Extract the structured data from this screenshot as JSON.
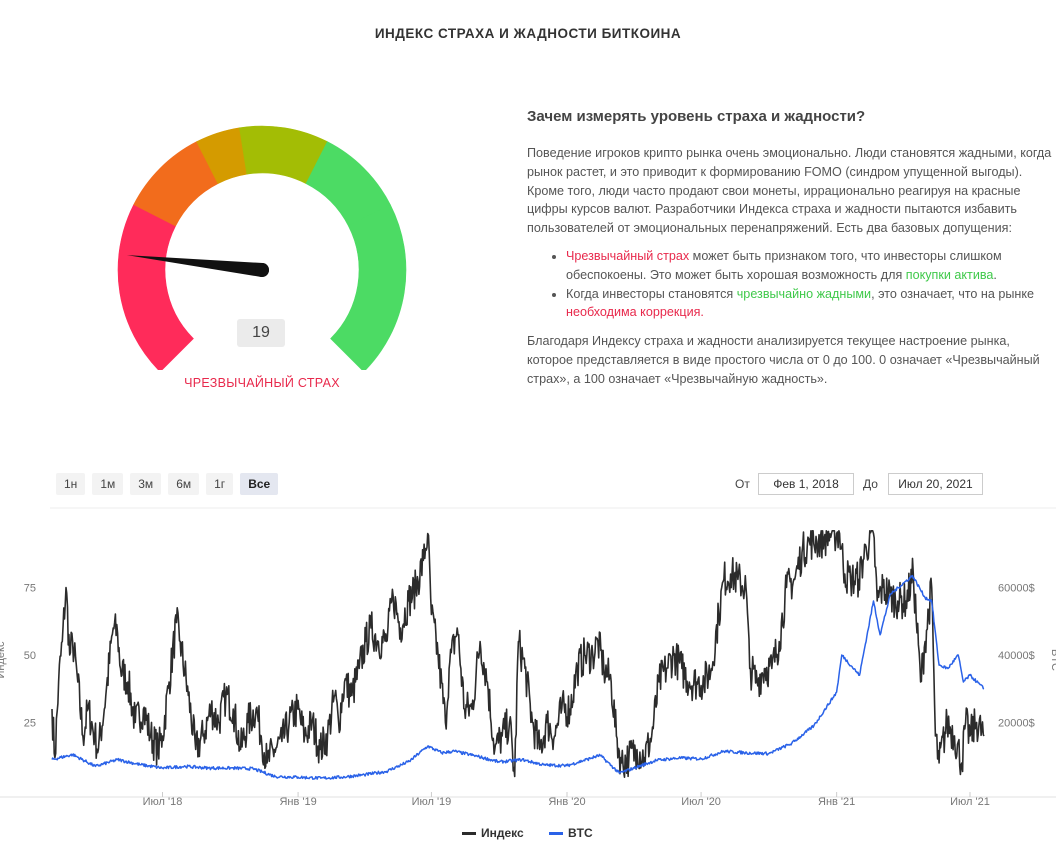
{
  "page_title": "ИНДЕКС СТРАХА И ЖАДНОСТИ БИТКОИНА",
  "gauge": {
    "value": "19",
    "label": "ЧРЕЗВЫЧАЙНЫЙ СТРАХ",
    "segment_colors": [
      "#ff2b5a",
      "#f26c1c",
      "#d49b00",
      "#a3bd05",
      "#4cdb64"
    ]
  },
  "info": {
    "heading": "Зачем измерять уровень страха и жадности?",
    "paragraph1": "Поведение игроков крипто рынка очень эмоционально. Люди становятся жадными, когда рынок растет, и это приводит к формированию FOMO (синдром упущенной выгоды). Кроме того, люди часто продают свои монеты, иррационально реагируя на красные цифры курсов валют. Разработчики Индекса страха и жадности пытаются избавить пользователей от эмоциональных перенапряжений. Есть два базовых допущения:",
    "bullet1": {
      "highlight": "Чрезвычайный страх",
      "text": " может быть признаком того, что инвесторы слишком обеспокоены. Это может быть хорошая возможность для ",
      "highlight2": "покупки актива",
      "end": "."
    },
    "bullet2": {
      "text": "Когда инвесторы становятся ",
      "highlight": "чрезвычайно жадными",
      "text2": ", это означает, что на рынке ",
      "highlight2": "необходима коррекция."
    },
    "paragraph2": "Благодаря Индексу страха и жадности анализируется текущее настроение рынка, которое представляется в виде простого числа от 0 до 100. 0 означает «Чрезвычайный страх», а 100 означает «Чрезвычайную жадность»."
  },
  "controls": {
    "ranges": [
      "1н",
      "1м",
      "3м",
      "6м",
      "1г",
      "Все"
    ],
    "active_range": "Все",
    "from_label": "От",
    "from_value": "Фев 1, 2018",
    "to_label": "До",
    "to_value": "Июл 20, 2021"
  },
  "legend": {
    "index": "Индекс",
    "btc": "BTC"
  },
  "chart_data": {
    "type": "line",
    "x_range": [
      "2018-02-01",
      "2021-07-20"
    ],
    "x_ticks": [
      {
        "date": "2018-07-01",
        "label": "Июл '18"
      },
      {
        "date": "2019-01-01",
        "label": "Янв '19"
      },
      {
        "date": "2019-07-01",
        "label": "Июл '19"
      },
      {
        "date": "2020-01-01",
        "label": "Янв '20"
      },
      {
        "date": "2020-07-01",
        "label": "Июл '20"
      },
      {
        "date": "2021-01-01",
        "label": "Янв '21"
      },
      {
        "date": "2021-07-01",
        "label": "Июл '21"
      }
    ],
    "y_left": {
      "label": "Индекс",
      "range": [
        0,
        100
      ],
      "ticks": [
        {
          "v": 25,
          "label": "25"
        },
        {
          "v": 50,
          "label": "50"
        },
        {
          "v": 75,
          "label": "75"
        }
      ]
    },
    "y_right": {
      "label": "BTC",
      "range": [
        0,
        80000
      ],
      "ticks": [
        {
          "v": 20000,
          "label": "20000$"
        },
        {
          "v": 40000,
          "label": "40000$"
        },
        {
          "v": 60000,
          "label": "60000$"
        }
      ]
    },
    "series": [
      {
        "name": "Индекс",
        "color": "#2b2b2b",
        "axis": "left",
        "points": [
          [
            "2018-02-01",
            30
          ],
          [
            "2018-02-05",
            12
          ],
          [
            "2018-02-10",
            40
          ],
          [
            "2018-02-15",
            55
          ],
          [
            "2018-02-20",
            75
          ],
          [
            "2018-02-25",
            50
          ],
          [
            "2018-03-01",
            55
          ],
          [
            "2018-03-08",
            40
          ],
          [
            "2018-03-15",
            20
          ],
          [
            "2018-03-22",
            30
          ],
          [
            "2018-03-31",
            20
          ],
          [
            "2018-04-05",
            15
          ],
          [
            "2018-04-15",
            35
          ],
          [
            "2018-04-25",
            60
          ],
          [
            "2018-05-01",
            58
          ],
          [
            "2018-05-05",
            45
          ],
          [
            "2018-05-15",
            40
          ],
          [
            "2018-05-25",
            25
          ],
          [
            "2018-06-05",
            30
          ],
          [
            "2018-06-15",
            20
          ],
          [
            "2018-06-25",
            15
          ],
          [
            "2018-07-01",
            20
          ],
          [
            "2018-07-10",
            40
          ],
          [
            "2018-07-20",
            62
          ],
          [
            "2018-07-25",
            55
          ],
          [
            "2018-08-05",
            35
          ],
          [
            "2018-08-15",
            15
          ],
          [
            "2018-08-25",
            20
          ],
          [
            "2018-09-05",
            30
          ],
          [
            "2018-09-15",
            25
          ],
          [
            "2018-09-25",
            35
          ],
          [
            "2018-10-05",
            30
          ],
          [
            "2018-10-15",
            15
          ],
          [
            "2018-10-25",
            25
          ],
          [
            "2018-11-05",
            30
          ],
          [
            "2018-11-12",
            20
          ],
          [
            "2018-11-20",
            10
          ],
          [
            "2018-11-30",
            15
          ],
          [
            "2018-12-10",
            18
          ],
          [
            "2018-12-20",
            25
          ],
          [
            "2018-12-31",
            30
          ],
          [
            "2019-01-10",
            20
          ],
          [
            "2019-01-20",
            25
          ],
          [
            "2019-01-31",
            15
          ],
          [
            "2019-02-10",
            20
          ],
          [
            "2019-02-20",
            35
          ],
          [
            "2019-02-25",
            25
          ],
          [
            "2019-03-05",
            40
          ],
          [
            "2019-03-15",
            35
          ],
          [
            "2019-03-25",
            45
          ],
          [
            "2019-04-03",
            55
          ],
          [
            "2019-04-10",
            60
          ],
          [
            "2019-04-20",
            55
          ],
          [
            "2019-05-01",
            55
          ],
          [
            "2019-05-10",
            72
          ],
          [
            "2019-05-20",
            60
          ],
          [
            "2019-05-31",
            70
          ],
          [
            "2019-06-10",
            75
          ],
          [
            "2019-06-20",
            85
          ],
          [
            "2019-06-26",
            95
          ],
          [
            "2019-07-01",
            65
          ],
          [
            "2019-07-10",
            50
          ],
          [
            "2019-07-20",
            25
          ],
          [
            "2019-07-25",
            45
          ],
          [
            "2019-08-05",
            60
          ],
          [
            "2019-08-15",
            30
          ],
          [
            "2019-08-25",
            30
          ],
          [
            "2019-09-05",
            55
          ],
          [
            "2019-09-15",
            40
          ],
          [
            "2019-09-25",
            15
          ],
          [
            "2019-10-05",
            20
          ],
          [
            "2019-10-15",
            25
          ],
          [
            "2019-10-22",
            5
          ],
          [
            "2019-10-27",
            55
          ],
          [
            "2019-11-05",
            45
          ],
          [
            "2019-11-15",
            25
          ],
          [
            "2019-11-25",
            15
          ],
          [
            "2019-12-05",
            25
          ],
          [
            "2019-12-15",
            20
          ],
          [
            "2019-12-25",
            30
          ],
          [
            "2020-01-05",
            30
          ],
          [
            "2020-01-15",
            45
          ],
          [
            "2020-01-25",
            50
          ],
          [
            "2020-02-05",
            50
          ],
          [
            "2020-02-12",
            55
          ],
          [
            "2020-02-20",
            45
          ],
          [
            "2020-03-01",
            40
          ],
          [
            "2020-03-08",
            20
          ],
          [
            "2020-03-15",
            10
          ],
          [
            "2020-03-25",
            12
          ],
          [
            "2020-04-05",
            15
          ],
          [
            "2020-04-15",
            12
          ],
          [
            "2020-04-25",
            20
          ],
          [
            "2020-05-05",
            40
          ],
          [
            "2020-05-15",
            45
          ],
          [
            "2020-05-25",
            50
          ],
          [
            "2020-06-05",
            45
          ],
          [
            "2020-06-15",
            40
          ],
          [
            "2020-06-25",
            40
          ],
          [
            "2020-07-05",
            40
          ],
          [
            "2020-07-15",
            45
          ],
          [
            "2020-07-25",
            65
          ],
          [
            "2020-08-01",
            78
          ],
          [
            "2020-08-10",
            80
          ],
          [
            "2020-08-20",
            78
          ],
          [
            "2020-08-31",
            75
          ],
          [
            "2020-09-05",
            45
          ],
          [
            "2020-09-15",
            40
          ],
          [
            "2020-09-25",
            45
          ],
          [
            "2020-10-05",
            45
          ],
          [
            "2020-10-15",
            55
          ],
          [
            "2020-10-25",
            75
          ],
          [
            "2020-11-05",
            78
          ],
          [
            "2020-11-15",
            88
          ],
          [
            "2020-11-25",
            92
          ],
          [
            "2020-12-05",
            92
          ],
          [
            "2020-12-15",
            93
          ],
          [
            "2020-12-25",
            95
          ],
          [
            "2021-01-05",
            95
          ],
          [
            "2021-01-12",
            80
          ],
          [
            "2021-01-20",
            78
          ],
          [
            "2021-01-31",
            78
          ],
          [
            "2021-02-10",
            90
          ],
          [
            "2021-02-20",
            95
          ],
          [
            "2021-02-25",
            70
          ],
          [
            "2021-03-05",
            75
          ],
          [
            "2021-03-15",
            72
          ],
          [
            "2021-03-25",
            70
          ],
          [
            "2021-04-05",
            70
          ],
          [
            "2021-04-15",
            80
          ],
          [
            "2021-04-25",
            40
          ],
          [
            "2021-05-01",
            55
          ],
          [
            "2021-05-10",
            75
          ],
          [
            "2021-05-15",
            20
          ],
          [
            "2021-05-20",
            10
          ],
          [
            "2021-05-31",
            25
          ],
          [
            "2021-06-10",
            20
          ],
          [
            "2021-06-20",
            10
          ],
          [
            "2021-06-25",
            25
          ],
          [
            "2021-07-01",
            20
          ],
          [
            "2021-07-10",
            25
          ],
          [
            "2021-07-20",
            20
          ]
        ]
      },
      {
        "name": "BTC",
        "color": "#2a62e8",
        "axis": "right",
        "points": [
          [
            "2018-02-01",
            9000
          ],
          [
            "2018-03-01",
            10500
          ],
          [
            "2018-04-01",
            7000
          ],
          [
            "2018-05-01",
            9000
          ],
          [
            "2018-06-01",
            7500
          ],
          [
            "2018-07-01",
            6500
          ],
          [
            "2018-08-01",
            7000
          ],
          [
            "2018-09-01",
            6500
          ],
          [
            "2018-10-01",
            6500
          ],
          [
            "2018-11-01",
            6300
          ],
          [
            "2018-12-01",
            4000
          ],
          [
            "2019-01-01",
            3800
          ],
          [
            "2019-02-01",
            3500
          ],
          [
            "2019-03-01",
            3800
          ],
          [
            "2019-04-01",
            4500
          ],
          [
            "2019-05-01",
            5500
          ],
          [
            "2019-06-01",
            8500
          ],
          [
            "2019-06-26",
            13000
          ],
          [
            "2019-07-15",
            11000
          ],
          [
            "2019-08-01",
            11500
          ],
          [
            "2019-09-01",
            10000
          ],
          [
            "2019-10-01",
            8300
          ],
          [
            "2019-11-01",
            9000
          ],
          [
            "2019-12-01",
            7400
          ],
          [
            "2020-01-01",
            7200
          ],
          [
            "2020-02-15",
            10300
          ],
          [
            "2020-03-12",
            5000
          ],
          [
            "2020-04-01",
            6500
          ],
          [
            "2020-05-01",
            8800
          ],
          [
            "2020-06-01",
            9500
          ],
          [
            "2020-07-01",
            9200
          ],
          [
            "2020-08-01",
            11500
          ],
          [
            "2020-09-01",
            11000
          ],
          [
            "2020-10-01",
            10800
          ],
          [
            "2020-11-01",
            13800
          ],
          [
            "2020-12-01",
            19000
          ],
          [
            "2021-01-01",
            29000
          ],
          [
            "2021-01-08",
            40000
          ],
          [
            "2021-02-01",
            34000
          ],
          [
            "2021-02-20",
            56000
          ],
          [
            "2021-03-01",
            46000
          ],
          [
            "2021-03-15",
            58000
          ],
          [
            "2021-04-14",
            63500
          ],
          [
            "2021-05-01",
            57000
          ],
          [
            "2021-05-10",
            56000
          ],
          [
            "2021-05-20",
            37000
          ],
          [
            "2021-06-01",
            36000
          ],
          [
            "2021-06-15",
            40000
          ],
          [
            "2021-06-22",
            32000
          ],
          [
            "2021-07-01",
            34000
          ],
          [
            "2021-07-20",
            30000
          ]
        ]
      }
    ]
  }
}
